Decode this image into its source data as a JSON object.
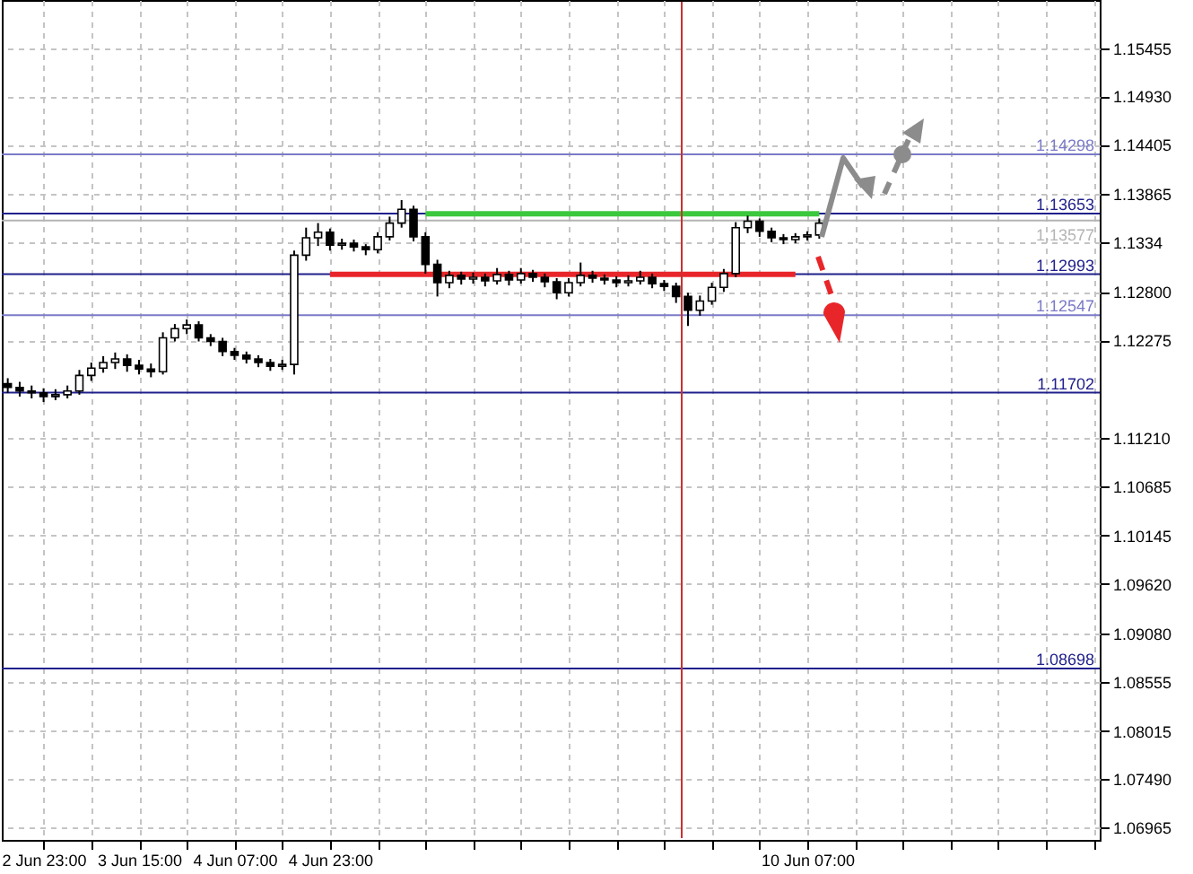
{
  "chart_data": {
    "type": "candlestick",
    "grid": true,
    "ylim": [
      1.0683,
      1.1598
    ],
    "yticks": [
      1.15455,
      {
        "value": 1.1493,
        "label": "1.14930"
      },
      1.14405,
      1.13865,
      1.1334,
      {
        "value": 1.128,
        "label": "1.12800"
      },
      1.12275,
      {
        "value": 1.1121,
        "label": "1.11210"
      },
      1.10685,
      1.10145,
      {
        "value": 1.0962,
        "label": "1.09620"
      },
      {
        "value": 1.0908,
        "label": "1.09080"
      },
      1.08555,
      1.08015,
      {
        "value": 1.0749,
        "label": "1.07490"
      },
      1.06965
    ],
    "categories": [
      null,
      null,
      null,
      "2 Jun 23:00",
      null,
      null,
      null,
      null,
      null,
      null,
      null,
      "3 Jun 15:00",
      null,
      null,
      null,
      null,
      null,
      null,
      null,
      "4 Jun 07:00",
      null,
      null,
      null,
      null,
      null,
      null,
      null,
      "4 Jun 23:00",
      null,
      null,
      null,
      null,
      null,
      null,
      null,
      null,
      null,
      null,
      null,
      null,
      null,
      null,
      null,
      null,
      null,
      null,
      null,
      null,
      null,
      null,
      null,
      null,
      null,
      null,
      null,
      null,
      null,
      null,
      null,
      null,
      null,
      null,
      null,
      null,
      null,
      null,
      null,
      "10 Jun 07:00",
      null,
      null,
      null,
      null,
      null,
      null,
      null,
      null,
      null,
      null,
      null,
      null,
      null,
      null,
      null,
      null,
      null,
      null,
      null,
      null,
      null,
      null,
      null,
      null
    ],
    "ohlc": [
      [
        1.118,
        1.1186,
        1.117,
        1.1176
      ],
      [
        1.1176,
        1.1182,
        1.1166,
        1.1172
      ],
      [
        1.1172,
        1.1178,
        1.1164,
        1.117
      ],
      [
        1.117,
        1.1175,
        1.116,
        1.1166
      ],
      [
        1.1166,
        1.1174,
        1.1162,
        1.1168
      ],
      [
        1.1168,
        1.1178,
        1.1164,
        1.1172
      ],
      [
        1.1172,
        1.1195,
        1.1168,
        1.1189
      ],
      [
        1.1189,
        1.1203,
        1.1183,
        1.1197
      ],
      [
        1.1197,
        1.121,
        1.1192,
        1.1203
      ],
      [
        1.1203,
        1.1214,
        1.1196,
        1.1207
      ],
      [
        1.1207,
        1.1212,
        1.1193,
        1.12
      ],
      [
        1.12,
        1.1206,
        1.119,
        1.1196
      ],
      [
        1.1196,
        1.1202,
        1.1187,
        1.1193
      ],
      [
        1.1193,
        1.1236,
        1.119,
        1.123
      ],
      [
        1.123,
        1.1245,
        1.1226,
        1.124
      ],
      [
        1.124,
        1.125,
        1.1234,
        1.1244
      ],
      [
        1.1244,
        1.1248,
        1.1226,
        1.123
      ],
      [
        1.123,
        1.1234,
        1.1221,
        1.1226
      ],
      [
        1.1226,
        1.123,
        1.121,
        1.1215
      ],
      [
        1.1215,
        1.1219,
        1.1206,
        1.1211
      ],
      [
        1.1211,
        1.1215,
        1.1202,
        1.1207
      ],
      [
        1.1207,
        1.1211,
        1.1198,
        1.1203
      ],
      [
        1.1203,
        1.1207,
        1.1194,
        1.1199
      ],
      [
        1.1199,
        1.1206,
        1.1195,
        1.1201
      ],
      [
        1.1201,
        1.1325,
        1.119,
        1.132
      ],
      [
        1.132,
        1.135,
        1.1314,
        1.1339
      ],
      [
        1.1339,
        1.1355,
        1.133,
        1.1345
      ],
      [
        1.1345,
        1.1349,
        1.1325,
        1.1331
      ],
      [
        1.1331,
        1.1338,
        1.1326,
        1.1333
      ],
      [
        1.1333,
        1.1337,
        1.1324,
        1.1329
      ],
      [
        1.1329,
        1.1332,
        1.132,
        1.1326
      ],
      [
        1.1326,
        1.1345,
        1.1322,
        1.134
      ],
      [
        1.134,
        1.1362,
        1.1336,
        1.1355
      ],
      [
        1.1355,
        1.138,
        1.135,
        1.137
      ],
      [
        1.137,
        1.1374,
        1.1335,
        1.134
      ],
      [
        1.134,
        1.1345,
        1.13,
        1.131
      ],
      [
        1.131,
        1.1315,
        1.1275,
        1.129
      ],
      [
        1.129,
        1.1303,
        1.1284,
        1.1298
      ],
      [
        1.1298,
        1.1302,
        1.1288,
        1.1294
      ],
      [
        1.1294,
        1.1301,
        1.1289,
        1.1296
      ],
      [
        1.1296,
        1.13,
        1.1286,
        1.1292
      ],
      [
        1.1292,
        1.1306,
        1.1288,
        1.1299
      ],
      [
        1.1299,
        1.1303,
        1.1287,
        1.1293
      ],
      [
        1.1293,
        1.1306,
        1.1289,
        1.13
      ],
      [
        1.13,
        1.1304,
        1.1291,
        1.1296
      ],
      [
        1.1296,
        1.13,
        1.1285,
        1.1291
      ],
      [
        1.1291,
        1.1295,
        1.1272,
        1.1279
      ],
      [
        1.1279,
        1.1295,
        1.1275,
        1.129
      ],
      [
        1.129,
        1.1312,
        1.1286,
        1.1298
      ],
      [
        1.1298,
        1.1303,
        1.129,
        1.1295
      ],
      [
        1.1295,
        1.1299,
        1.1288,
        1.1293
      ],
      [
        1.1293,
        1.1297,
        1.1285,
        1.129
      ],
      [
        1.129,
        1.1298,
        1.1286,
        1.1292
      ],
      [
        1.1292,
        1.1303,
        1.1288,
        1.1296
      ],
      [
        1.1296,
        1.13,
        1.1284,
        1.1289
      ],
      [
        1.1289,
        1.1293,
        1.1281,
        1.1286
      ],
      [
        1.1286,
        1.129,
        1.1268,
        1.1275
      ],
      [
        1.1275,
        1.1279,
        1.1243,
        1.126
      ],
      [
        1.126,
        1.1276,
        1.1254,
        1.127
      ],
      [
        1.127,
        1.129,
        1.1266,
        1.1285
      ],
      [
        1.1285,
        1.1305,
        1.128,
        1.13
      ],
      [
        1.13,
        1.1356,
        1.1296,
        1.135
      ],
      [
        1.135,
        1.1363,
        1.1344,
        1.1357
      ],
      [
        1.1357,
        1.136,
        1.134,
        1.1346
      ],
      [
        1.1346,
        1.135,
        1.1334,
        1.1339
      ],
      [
        1.1339,
        1.1343,
        1.1332,
        1.1337
      ],
      [
        1.1337,
        1.1344,
        1.1333,
        1.134
      ],
      [
        1.134,
        1.1346,
        1.1336,
        1.1342
      ],
      [
        1.1342,
        1.136,
        1.1338,
        1.1355
      ],
      null,
      null,
      null,
      null,
      null,
      null,
      null,
      null,
      null,
      null,
      null,
      null,
      null,
      null,
      null,
      null,
      null,
      null,
      null,
      null,
      null,
      null,
      null
    ],
    "series": [
      {
        "type": "line",
        "color": "#3cc83c",
        "values": [
          null,
          null,
          null,
          null,
          null,
          null,
          null,
          null,
          null,
          null,
          null,
          null,
          null,
          null,
          null,
          null,
          null,
          null,
          null,
          null,
          null,
          null,
          null,
          null,
          null,
          null,
          null,
          null,
          null,
          null,
          null,
          null,
          null,
          null,
          null,
          1.1365,
          1.1365,
          1.1365,
          1.1365,
          1.1365,
          1.1365,
          1.1365,
          1.1365,
          1.1365,
          1.1365,
          1.1365,
          1.1365,
          1.1365,
          1.1365,
          1.1365,
          1.1365,
          1.1365,
          1.1365,
          1.1365,
          1.1365,
          1.1365,
          1.1365,
          1.1365,
          1.1365,
          1.1365,
          1.1365,
          1.1365,
          1.1365,
          1.1365,
          1.1365,
          1.1365,
          1.1365,
          1.1365,
          1.1365,
          null,
          null,
          null,
          null,
          null,
          null,
          null,
          null,
          null,
          null,
          null,
          null,
          null,
          null,
          null,
          null,
          null,
          null,
          null,
          null,
          null,
          null,
          null
        ]
      },
      {
        "type": "line",
        "color": "#e8262a",
        "values": [
          null,
          null,
          null,
          null,
          null,
          null,
          null,
          null,
          null,
          null,
          null,
          null,
          null,
          null,
          null,
          null,
          null,
          null,
          null,
          null,
          null,
          null,
          null,
          null,
          null,
          null,
          null,
          1.1299,
          1.1299,
          1.1299,
          1.1299,
          1.1299,
          1.1299,
          1.1299,
          1.1299,
          1.1299,
          1.1299,
          1.1299,
          1.1299,
          1.1299,
          1.1299,
          1.1299,
          1.1299,
          1.1299,
          1.1299,
          1.1299,
          1.1299,
          1.1299,
          1.1299,
          1.1299,
          1.1299,
          1.1299,
          1.1299,
          1.1299,
          1.1299,
          1.1299,
          1.1299,
          1.1299,
          1.1299,
          1.1299,
          1.1299,
          1.1299,
          1.1299,
          1.1299,
          1.1299,
          1.1299,
          1.1299,
          null,
          null,
          null,
          null,
          null,
          null,
          null,
          null,
          null,
          null,
          null,
          null,
          null,
          null,
          null,
          null,
          null,
          null,
          null,
          null,
          null,
          null,
          null,
          null,
          null
        ]
      }
    ],
    "ref_lines": [
      {
        "axis": "y",
        "value": 1.14298,
        "label": "1.14298",
        "color": "#7a7ac8"
      },
      {
        "axis": "y",
        "value": 1.13653,
        "label": "1.13653",
        "color": "#20208c"
      },
      {
        "axis": "y",
        "value": 1.13577,
        "label": "1.13577",
        "color": "#b4b4b4"
      },
      {
        "axis": "y",
        "value": 1.12993,
        "label": "1.12993",
        "color": "#20208c"
      },
      {
        "axis": "y",
        "value": 1.12547,
        "label": "1.12547",
        "color": "#7a7ac8"
      },
      {
        "axis": "y",
        "value": 1.11702,
        "label": "1.11702",
        "color": "#20208c"
      },
      {
        "axis": "y",
        "value": 1.08698,
        "label": "1.08698",
        "color": "#20208c"
      }
    ]
  }
}
